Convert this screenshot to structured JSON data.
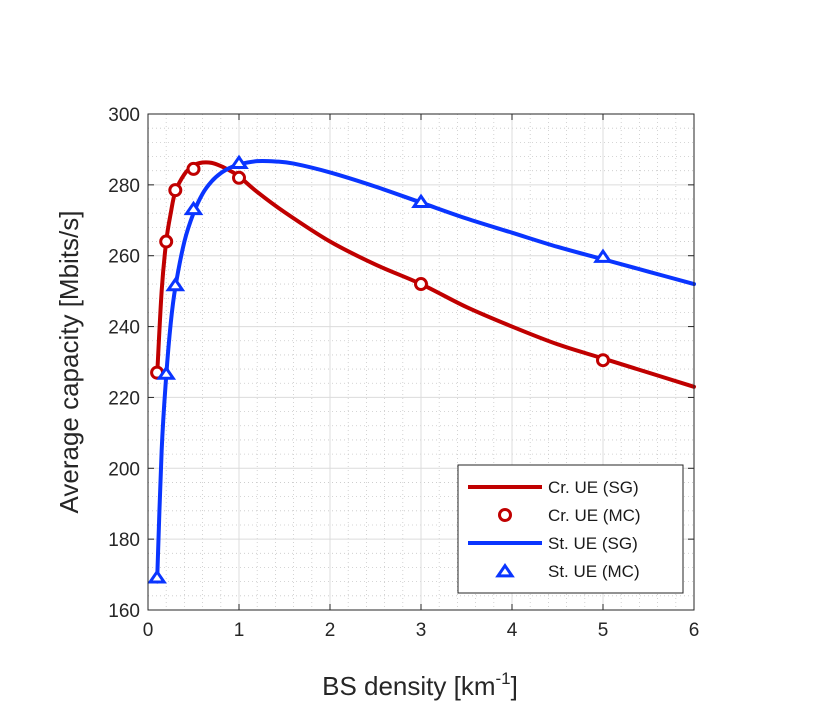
{
  "chart_data": {
    "type": "line",
    "title": "",
    "xlabel": "BS density [km",
    "xlabel_superscript": "-1",
    "xlabel_suffix": "]",
    "ylabel": "Average capacity [Mbits/s]",
    "xlim": [
      0,
      6
    ],
    "ylim": [
      160,
      300
    ],
    "xticks": [
      0,
      1,
      2,
      3,
      4,
      5,
      6
    ],
    "xtick_labels": [
      "0",
      "1",
      "2",
      "3",
      "4",
      "5",
      "6"
    ],
    "yticks": [
      160,
      180,
      200,
      220,
      240,
      260,
      280,
      300
    ],
    "ytick_labels": [
      "160",
      "180",
      "200",
      "220",
      "240",
      "260",
      "280",
      "300"
    ],
    "grid": "on, with minor grid",
    "legend_placement": "bottom-right",
    "series": [
      {
        "name": "Cr. UE (SG)",
        "style": "line",
        "color": "#c00000",
        "x": [
          0.1,
          0.15,
          0.2,
          0.25,
          0.3,
          0.4,
          0.5,
          0.6,
          0.7,
          0.8,
          0.9,
          1.0,
          1.2,
          1.5,
          2.0,
          2.5,
          3.0,
          3.5,
          4.0,
          4.5,
          5.0,
          5.5,
          6.0
        ],
        "y": [
          226,
          250,
          264,
          272,
          278,
          283,
          285.5,
          286.3,
          286.2,
          285.3,
          284.0,
          282.4,
          278.0,
          272.3,
          264.0,
          257.5,
          252.0,
          245.5,
          240.0,
          235.0,
          231.0,
          227.0,
          223.0
        ]
      },
      {
        "name": "Cr. UE (MC)",
        "style": "markers",
        "marker": "circle",
        "color": "#c00000",
        "x": [
          0.1,
          0.2,
          0.3,
          0.5,
          1.0,
          3.0,
          5.0
        ],
        "y": [
          227,
          264,
          278.5,
          284.5,
          282,
          252,
          230.5
        ]
      },
      {
        "name": "St. UE (SG)",
        "style": "line",
        "color": "#0a35ff",
        "x": [
          0.1,
          0.15,
          0.2,
          0.25,
          0.3,
          0.4,
          0.5,
          0.6,
          0.7,
          0.8,
          0.9,
          1.0,
          1.2,
          1.4,
          1.6,
          2.0,
          2.5,
          3.0,
          3.5,
          4.0,
          4.5,
          5.0,
          5.5,
          6.0
        ],
        "y": [
          168,
          205,
          226,
          241,
          251,
          264,
          272,
          277.5,
          281.0,
          283.3,
          284.8,
          285.8,
          286.7,
          286.6,
          286.0,
          283.5,
          279.5,
          275.0,
          270.5,
          266.5,
          262.5,
          259.0,
          255.5,
          252.0
        ]
      },
      {
        "name": "St. UE (MC)",
        "style": "markers",
        "marker": "triangle",
        "color": "#0a35ff",
        "x": [
          0.1,
          0.2,
          0.3,
          0.5,
          1.0,
          3.0,
          5.0
        ],
        "y": [
          169,
          226.5,
          251.5,
          273,
          286,
          275,
          259.5
        ]
      }
    ]
  }
}
